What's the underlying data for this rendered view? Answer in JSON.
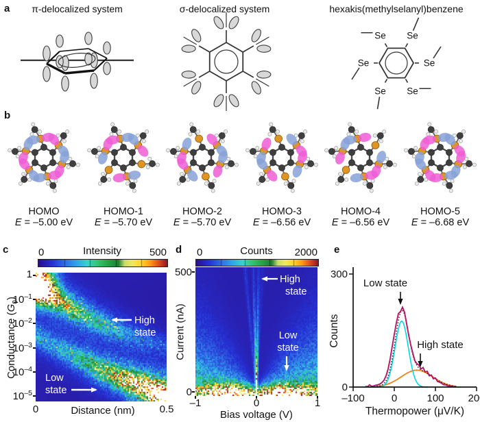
{
  "panels": {
    "a": {
      "label": "a",
      "systems": [
        {
          "title": "π-delocalized system"
        },
        {
          "title": "σ-delocalized system"
        },
        {
          "title": "hexakis(methylselanyl)benzene",
          "atom_label": "Se"
        }
      ]
    },
    "b": {
      "label": "b",
      "orbitals": [
        {
          "name": "HOMO",
          "energy": "E = –5.00 eV",
          "lobe_pattern": [
            1,
            1,
            1,
            1,
            1,
            1
          ]
        },
        {
          "name": "HOMO-1",
          "energy": "E = –5.70 eV",
          "lobe_pattern": [
            1,
            1,
            0,
            1,
            0,
            1
          ]
        },
        {
          "name": "HOMO-2",
          "energy": "E = –5.70 eV",
          "lobe_pattern": [
            0,
            1,
            1,
            0,
            1,
            1
          ]
        },
        {
          "name": "HOMO-3",
          "energy": "E = –6.56 eV",
          "lobe_pattern": [
            0,
            1,
            1,
            0,
            1,
            1
          ]
        },
        {
          "name": "HOMO-4",
          "energy": "E = –6.56 eV",
          "lobe_pattern": [
            1,
            0,
            1,
            1,
            0,
            1
          ]
        },
        {
          "name": "HOMO-5",
          "energy": "E = –6.68 eV",
          "lobe_pattern": [
            1,
            1,
            1,
            1,
            1,
            1
          ]
        }
      ]
    },
    "c": {
      "label": "c",
      "colorbar": {
        "min": "0",
        "title": "Intensity",
        "max": "500"
      },
      "y_axis": {
        "label_parts": {
          "pre": "Conductance (",
          "sym": "G",
          "sub": "0",
          "post": ")"
        },
        "ticks": [
          {
            "b": "1",
            "e": ""
          },
          {
            "b": "10",
            "e": "–1"
          },
          {
            "b": "10",
            "e": "–2"
          },
          {
            "b": "10",
            "e": "–3"
          },
          {
            "b": "10",
            "e": "–4"
          },
          {
            "b": "10",
            "e": "–5"
          }
        ]
      },
      "x_axis": {
        "label": "Distance (nm)",
        "ticks": [
          "0",
          "0.5"
        ]
      },
      "annotations": [
        {
          "lines": [
            "High",
            "state"
          ],
          "arrow": "left"
        },
        {
          "lines": [
            "Low",
            "state"
          ],
          "arrow": "right"
        }
      ]
    },
    "d": {
      "label": "d",
      "colorbar": {
        "min": "0",
        "title": "Counts",
        "max": "2000"
      },
      "y_axis": {
        "label": "Current (nA)",
        "ticks": [
          "500",
          "0"
        ]
      },
      "x_axis": {
        "label": "Bias voltage (V)",
        "ticks": [
          "–1",
          "0",
          "1"
        ]
      },
      "annotations": [
        {
          "lines": [
            "High",
            "state"
          ],
          "arrow": "left"
        },
        {
          "lines": [
            "Low",
            "state"
          ],
          "arrow": "down"
        }
      ]
    },
    "e": {
      "label": "e",
      "y_axis": {
        "label": "Counts",
        "ticks": [
          "300",
          "0"
        ]
      },
      "x_axis": {
        "label": "Thermopower (μV/K)",
        "ticks": [
          "–100",
          "0",
          "100",
          "200"
        ]
      },
      "annotations": [
        {
          "text": "Low state"
        },
        {
          "text": "High state"
        }
      ]
    }
  },
  "chart_data": [
    {
      "panel": "c",
      "type": "heatmap",
      "x": {
        "label": "Distance (nm)",
        "range": [
          0,
          0.5
        ]
      },
      "y": {
        "label": "Conductance (G0)",
        "scale": "log10",
        "range": [
          1e-05,
          1
        ]
      },
      "colorbar": {
        "label": "Intensity",
        "range": [
          0,
          500
        ]
      },
      "features": [
        {
          "name": "contact_rupture_hotspot",
          "distance_nm": [
            0,
            0.06
          ],
          "log10_conductance": [
            -1,
            0
          ],
          "intensity": 500
        },
        {
          "name": "high_state_plateau",
          "path_distance_nm": [
            0,
            0.1,
            0.2,
            0.3,
            0.35
          ],
          "path_log10_conductance": [
            -0.45,
            -1.2,
            -1.8,
            -2.3,
            -2.6
          ],
          "peak_intensity": 300
        },
        {
          "name": "low_state_plateau",
          "path_distance_nm": [
            0.05,
            0.15,
            0.25,
            0.35,
            0.5
          ],
          "path_log10_conductance": [
            -2.8,
            -3.4,
            -3.9,
            -4.4,
            -5.0
          ],
          "peak_intensity": 500
        }
      ],
      "annotations": [
        "High state",
        "Low state"
      ]
    },
    {
      "panel": "d",
      "type": "heatmap",
      "x": {
        "label": "Bias voltage (V)",
        "range": [
          -1,
          1
        ]
      },
      "y": {
        "label": "Current (nA)",
        "range": [
          0,
          500
        ]
      },
      "colorbar": {
        "label": "Counts",
        "range": [
          0,
          2000
        ]
      },
      "features": [
        {
          "name": "high_state_traces",
          "description": "steep near-vertical I-V traces at small bias",
          "counts": 1700
        },
        {
          "name": "low_state_fan",
          "description": "shallow I-V traces fanning from origin",
          "max_current_nA_at_1V": 130,
          "counts": 900
        },
        {
          "name": "zero_current_band",
          "current_nA": [
            0,
            30
          ],
          "counts": 2000
        }
      ],
      "annotations": [
        "High state",
        "Low state"
      ]
    },
    {
      "panel": "e",
      "type": "line",
      "x": {
        "label": "Thermopower (μV/K)",
        "range": [
          -100,
          200
        ],
        "ticks": [
          -100,
          0,
          100,
          200
        ]
      },
      "y": {
        "label": "Counts",
        "range": [
          0,
          300
        ],
        "ticks": [
          0,
          300
        ]
      },
      "series": [
        {
          "name": "measured_histogram",
          "color": "#b81464",
          "x": [
            -70,
            -65,
            -60,
            -55,
            -50,
            -45,
            -40,
            -35,
            -30,
            -25,
            -20,
            -15,
            -10,
            -5,
            0,
            5,
            10,
            15,
            20,
            25,
            30,
            35,
            40,
            45,
            50,
            55,
            60,
            65,
            70,
            75,
            80,
            85,
            90,
            95,
            100,
            105,
            110,
            115,
            120,
            125,
            130,
            135,
            140,
            145,
            150
          ],
          "y": [
            2,
            1,
            6,
            2,
            3,
            5,
            6,
            8,
            12,
            18,
            30,
            48,
            75,
            108,
            140,
            170,
            195,
            200,
            212,
            198,
            168,
            138,
            112,
            90,
            70,
            62,
            58,
            48,
            52,
            40,
            42,
            30,
            32,
            22,
            24,
            15,
            13,
            10,
            6,
            6,
            3,
            3,
            2,
            1,
            1
          ]
        },
        {
          "name": "low_state_fit",
          "type": "gaussian",
          "color": "#00d8e6",
          "center": 18,
          "sigma": 16,
          "amplitude": 175
        },
        {
          "name": "high_state_fit",
          "type": "gaussian",
          "color": "#ef8218",
          "center": 55,
          "sigma": 38,
          "amplitude": 45
        },
        {
          "name": "total_fit",
          "type": "sum_of_gaussians",
          "color": "#151515",
          "style": "dotted"
        }
      ],
      "annotations": [
        {
          "text": "Low state",
          "x": 20
        },
        {
          "text": "High state",
          "x": 62
        }
      ]
    }
  ],
  "colors": {
    "colormap": [
      [
        0,
        "#2c0f8c"
      ],
      [
        0.1,
        "#2630d2"
      ],
      [
        0.2,
        "#2f6ce6"
      ],
      [
        0.3,
        "#2fa8e8"
      ],
      [
        0.38,
        "#3cd2cc"
      ],
      [
        0.46,
        "#34c470"
      ],
      [
        0.54,
        "#28a648"
      ],
      [
        0.62,
        "#1e7e34"
      ],
      [
        0.67,
        "#cadc6a"
      ],
      [
        0.73,
        "#f0ea60"
      ],
      [
        0.8,
        "#ffd428"
      ],
      [
        0.87,
        "#ff9818"
      ],
      [
        0.93,
        "#e2541e"
      ],
      [
        1,
        "#941824"
      ]
    ],
    "saturated": "#ffffff",
    "orbital_lobe_pink": "#ee5ed6",
    "orbital_lobe_blue": "#87a2d8",
    "selenium": "#e09422",
    "carbon": "#3f3f3f",
    "hydrogen": "#ececec",
    "heatmap_annotation": "#ffffff",
    "text": "#1a1a1a"
  }
}
